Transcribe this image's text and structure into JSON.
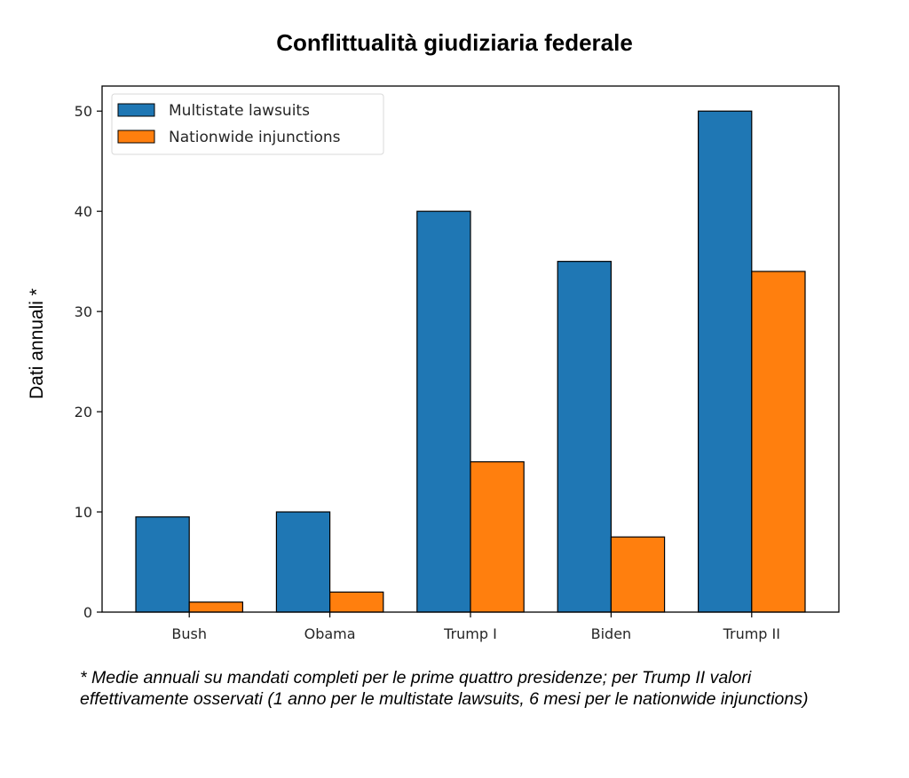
{
  "chart_data": {
    "type": "bar",
    "title": "Conflittualità giudiziaria federale",
    "xlabel": "",
    "ylabel": "Dati annuali *",
    "categories": [
      "Bush",
      "Obama",
      "Trump I",
      "Biden",
      "Trump II"
    ],
    "series": [
      {
        "name": "Multistate lawsuits",
        "color": "#1f77b4",
        "values": [
          9.5,
          10,
          40,
          35,
          50
        ]
      },
      {
        "name": "Nationwide injunctions",
        "color": "#ff7f0e",
        "values": [
          1,
          2,
          15,
          7.5,
          34
        ]
      }
    ],
    "ylim": [
      0,
      52.5
    ],
    "yticks": [
      0,
      10,
      20,
      30,
      40,
      50
    ],
    "grid": false,
    "legend_position": "top-left",
    "footnote": "* Medie annuali su mandati completi per le prime quattro presidenze; per Trump II valori effettivamente osservati (1 anno per le multistate lawsuits, 6 mesi per le nationwide injunctions)"
  }
}
